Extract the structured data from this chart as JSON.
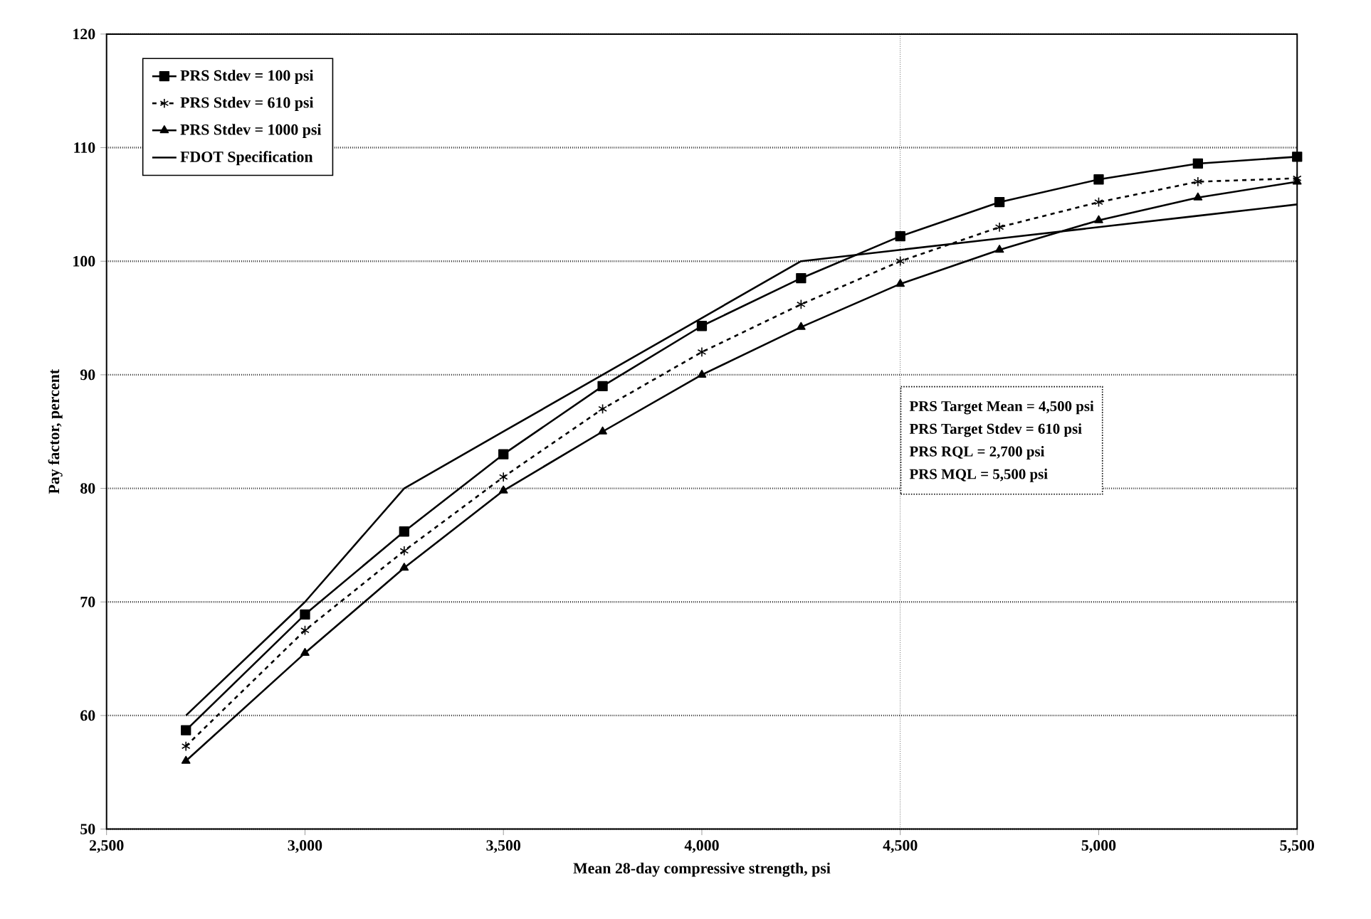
{
  "chart_data": {
    "type": "line",
    "xlabel": "Mean 28-day compressive strength, psi",
    "ylabel": "Pay factor, percent",
    "x": [
      2700,
      3000,
      3250,
      3500,
      3750,
      4000,
      4250,
      4500,
      4750,
      5000,
      5250,
      5500
    ],
    "xlim": [
      2500,
      5500
    ],
    "xticks": [
      {
        "value": 2500,
        "label": "2,500"
      },
      {
        "value": 3000,
        "label": "3,000"
      },
      {
        "value": 3500,
        "label": "3,500"
      },
      {
        "value": 4000,
        "label": "4,000"
      },
      {
        "value": 4500,
        "label": "4,500"
      },
      {
        "value": 5000,
        "label": "5,000"
      },
      {
        "value": 5500,
        "label": "5,500"
      }
    ],
    "ylim": [
      50,
      120
    ],
    "yticks": [
      50,
      60,
      70,
      80,
      90,
      100,
      110,
      120
    ],
    "grid": "y",
    "legend": "top left",
    "series": [
      {
        "name": "PRS Stdev = 100 psi",
        "color": "#000000",
        "marker": "square",
        "line_style": "solid",
        "values": [
          58.7,
          68.9,
          76.2,
          83,
          89,
          94.3,
          98.5,
          102.2,
          105.2,
          107.2,
          108.6,
          109.2
        ]
      },
      {
        "name": "PRS Stdev = 610 psi",
        "color": "#000000",
        "marker": "cross",
        "line_style": "dashed",
        "values": [
          57.3,
          67.5,
          74.5,
          81,
          87,
          92,
          96.2,
          100,
          103,
          105.2,
          107,
          107.3
        ]
      },
      {
        "name": "PRS Stdev = 1000 psi",
        "color": "#000000",
        "marker": "triangle",
        "line_style": "solid",
        "values": [
          56,
          65.5,
          73,
          79.8,
          85,
          90,
          94.2,
          98,
          101,
          103.6,
          105.6,
          107
        ]
      },
      {
        "name": "FDOT Specification",
        "color": "#000000",
        "marker": "none",
        "line_style": "solid",
        "values": [
          60,
          70,
          80,
          85,
          90,
          95,
          100,
          101,
          102,
          103,
          104,
          105
        ]
      }
    ],
    "ref_lines": [
      {
        "axis": "x",
        "value": 4500,
        "color": "#000000",
        "line_style": "dotted"
      }
    ],
    "annotations": [
      "PRS Target Mean = 4,500 psi",
      "PRS Target Stdev = 610 psi",
      "PRS RQL = 2,700 psi",
      "PRS MQL = 5,500 psi"
    ]
  }
}
